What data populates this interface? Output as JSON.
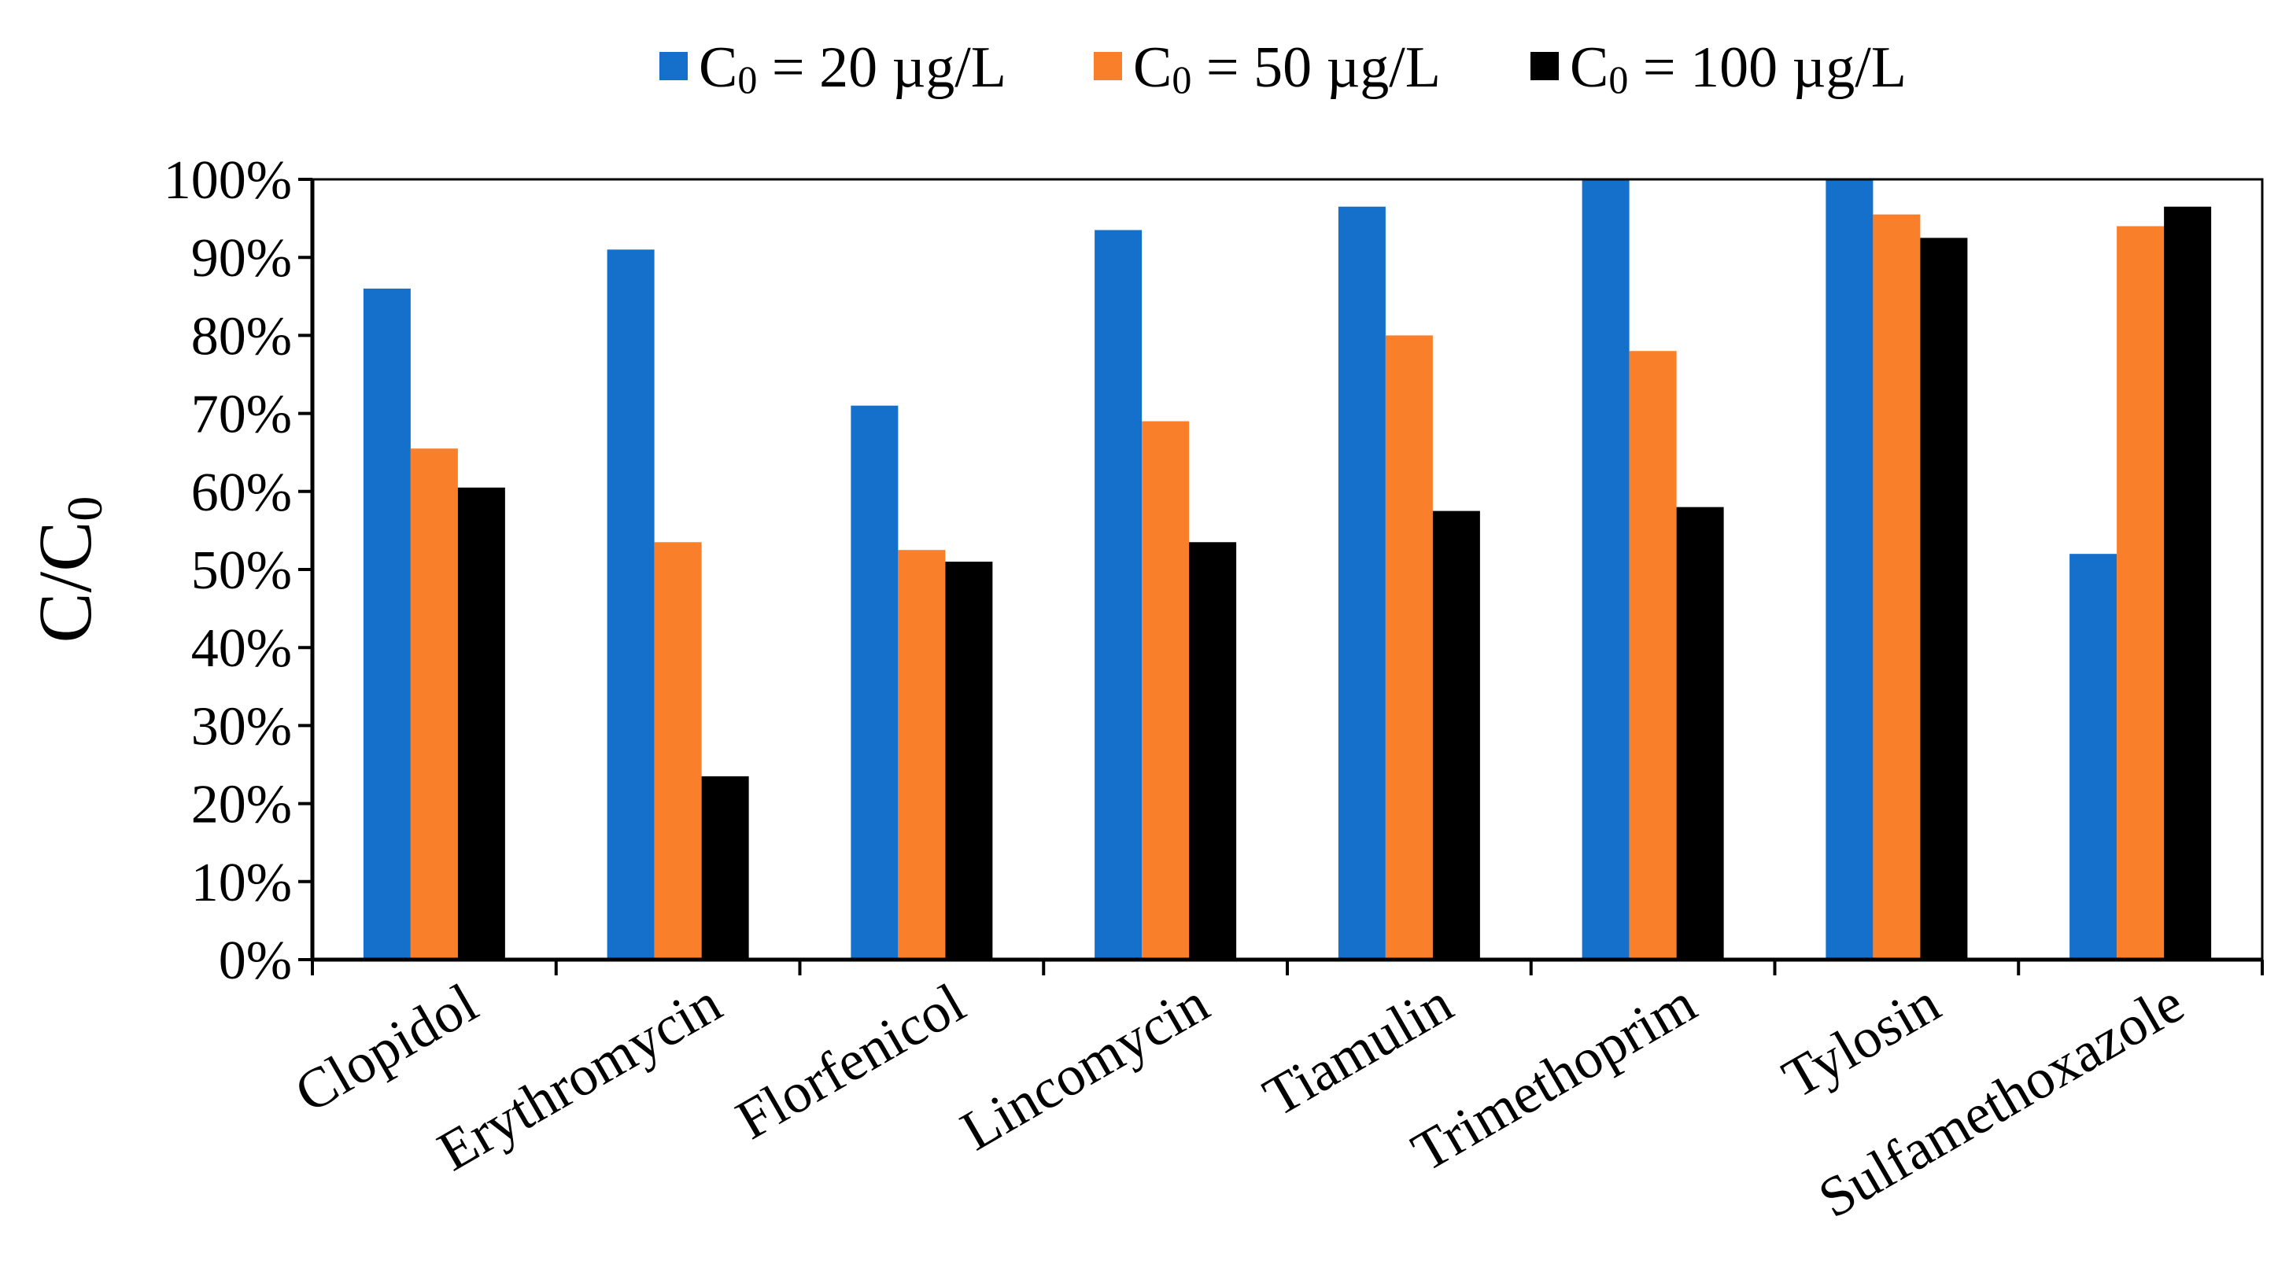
{
  "chart_data": {
    "type": "bar",
    "title": "",
    "xlabel": "",
    "ylabel": {
      "main": "C/C",
      "subscript": "0"
    },
    "ylim": [
      0,
      100
    ],
    "yticks": [
      0,
      10,
      20,
      30,
      40,
      50,
      60,
      70,
      80,
      90,
      100
    ],
    "ytick_labels": [
      "0%",
      "10%",
      "20%",
      "30%",
      "40%",
      "50%",
      "60%",
      "70%",
      "80%",
      "90%",
      "100%"
    ],
    "grid": false,
    "legend_position": "top",
    "categories": [
      "Clopidol",
      "Erythromycin",
      "Florfenicol",
      "Lincomycin",
      "Tiamulin",
      "Trimethoprim",
      "Tylosin",
      "Sulfamethoxazole"
    ],
    "series": [
      {
        "name": "C0 = 20 µg/L",
        "label_prefix": "C",
        "label_sub": "0",
        "label_suffix": " = 20 µg/L",
        "color": "#1570cc",
        "values": [
          86,
          91,
          71,
          93.5,
          96.5,
          100,
          100,
          52
        ]
      },
      {
        "name": "C0 = 50 µg/L",
        "label_prefix": "C",
        "label_sub": "0",
        "label_suffix": " = 50 µg/L",
        "color": "#fa7f2a",
        "values": [
          65.5,
          53.5,
          52.5,
          69,
          80,
          78,
          95.5,
          94
        ]
      },
      {
        "name": "C0 = 100 µg/L",
        "label_prefix": "C",
        "label_sub": "0",
        "label_suffix": " = 100 µg/L",
        "color": "#000000",
        "values": [
          60.5,
          23.5,
          51,
          53.5,
          57.5,
          58,
          92.5,
          96.5
        ]
      }
    ]
  }
}
